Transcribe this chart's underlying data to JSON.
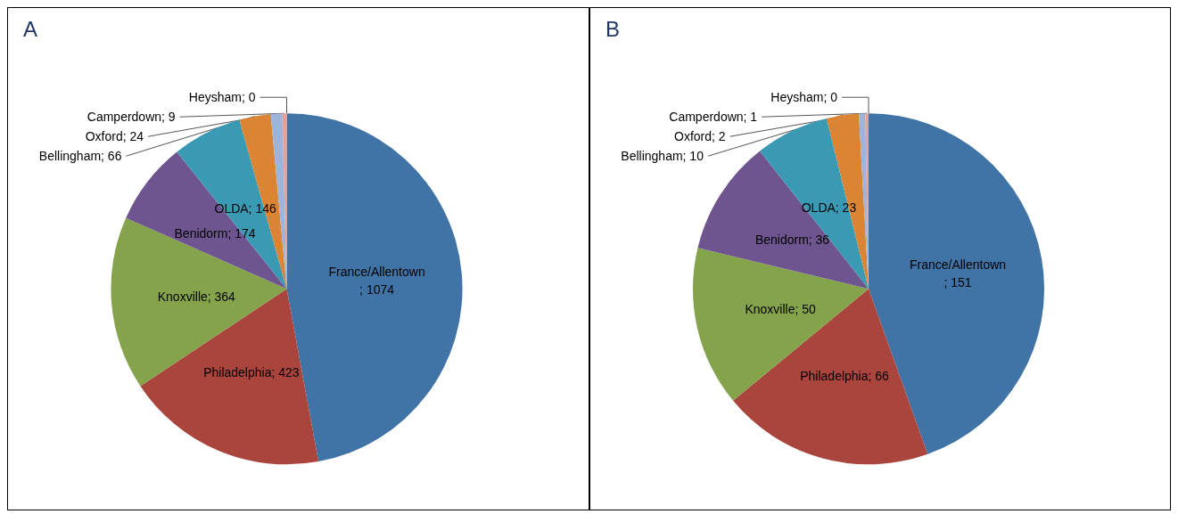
{
  "chart_data": [
    {
      "type": "pie",
      "title": "A",
      "categories": [
        "France/Allentown",
        "Philadelphia",
        "Knoxville",
        "Benidorm",
        "OLDA",
        "Bellingham",
        "Oxford",
        "Camperdown",
        "Heysham"
      ],
      "values": [
        1074,
        423,
        364,
        174,
        146,
        66,
        24,
        9,
        0
      ],
      "colors": [
        "#4073a6",
        "#aa453d",
        "#84a34b",
        "#6e5590",
        "#3a9ab3",
        "#db8433",
        "#9fb4da",
        "#e8a09a",
        "#c8d6a6"
      ],
      "value_labels": [
        "; 1074",
        "; 423",
        "; 364",
        "; 174",
        "; 146",
        "; 66",
        "; 24",
        "; 9",
        "; 0"
      ]
    },
    {
      "type": "pie",
      "title": "B",
      "categories": [
        "France/Allentown",
        "Philadelphia",
        "Knoxville",
        "Benidorm",
        "OLDA",
        "Bellingham",
        "Oxford",
        "Camperdown",
        "Heysham"
      ],
      "values": [
        151,
        66,
        50,
        36,
        23,
        10,
        2,
        1,
        0
      ],
      "colors": [
        "#4073a6",
        "#aa453d",
        "#84a34b",
        "#6e5590",
        "#3a9ab3",
        "#db8433",
        "#9fb4da",
        "#e8a09a",
        "#c8d6a6"
      ],
      "value_labels": [
        "; 151",
        "; 66",
        "; 50",
        "; 36",
        "; 23",
        "; 10",
        "; 2",
        "; 1",
        "; 0"
      ]
    }
  ]
}
